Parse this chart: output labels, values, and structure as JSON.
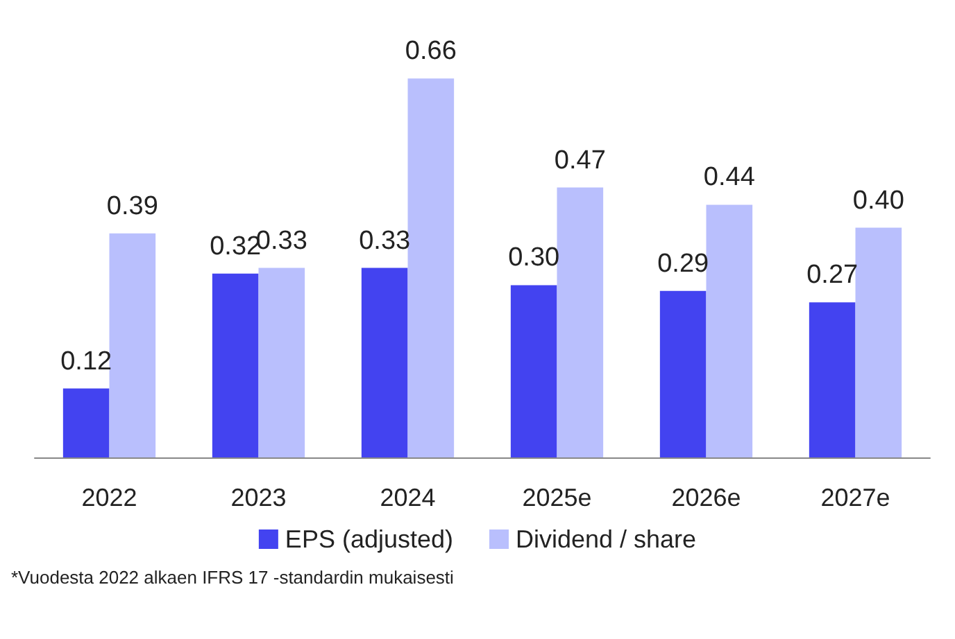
{
  "chart_data": {
    "type": "bar",
    "categories": [
      "2022",
      "2023",
      "2024",
      "2025e",
      "2026e",
      "2027e"
    ],
    "series": [
      {
        "name": "EPS (adjusted)",
        "color": "#4343f0",
        "values": [
          0.12,
          0.32,
          0.33,
          0.3,
          0.29,
          0.27
        ],
        "value_labels": [
          "0.12",
          "0.32",
          "0.33",
          "0.30",
          "0.29",
          "0.27"
        ]
      },
      {
        "name": "Dividend / share",
        "color": "#b9bffd",
        "values": [
          0.39,
          0.33,
          0.66,
          0.47,
          0.44,
          0.4
        ],
        "value_labels": [
          "0.39",
          "0.33",
          "0.66",
          "0.47",
          "0.44",
          "0.40"
        ]
      }
    ],
    "legend": "bottom",
    "annotations": [
      "*Vuodesta 2022 alkaen IFRS 17 -standardin mukaisesti"
    ]
  }
}
